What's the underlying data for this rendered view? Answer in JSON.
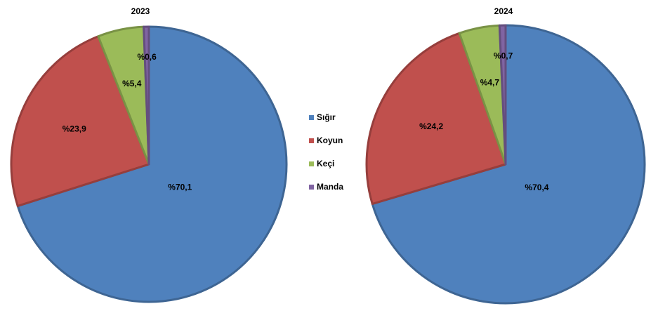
{
  "colors": {
    "Sığır": "#4f81bd",
    "Koyun": "#c0504d",
    "Keçi": "#9bbb59",
    "Manda": "#8064a2"
  },
  "legend": {
    "position": "center",
    "items": [
      {
        "label": "Sığır"
      },
      {
        "label": "Koyun"
      },
      {
        "label": "Keçi"
      },
      {
        "label": "Manda"
      }
    ]
  },
  "chart_data": [
    {
      "type": "pie",
      "title": "2023",
      "categories": [
        "Sığır",
        "Koyun",
        "Keçi",
        "Manda"
      ],
      "values": [
        70.1,
        23.9,
        5.4,
        0.6
      ],
      "labels": [
        "%70,1",
        "%23,9",
        "%5,4",
        "%0,6"
      ]
    },
    {
      "type": "pie",
      "title": "2024",
      "categories": [
        "Sığır",
        "Koyun",
        "Keçi",
        "Manda"
      ],
      "values": [
        70.4,
        24.2,
        4.7,
        0.7
      ],
      "labels": [
        "%70,4",
        "%24,2",
        "%4,7",
        "%0,7"
      ]
    }
  ]
}
